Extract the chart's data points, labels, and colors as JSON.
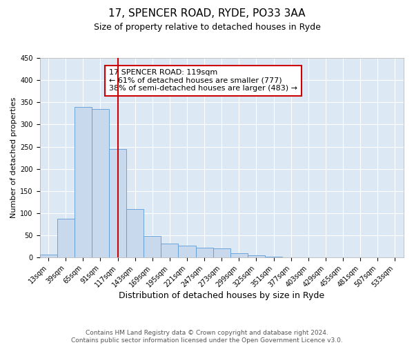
{
  "title": "17, SPENCER ROAD, RYDE, PO33 3AA",
  "subtitle": "Size of property relative to detached houses in Ryde",
  "xlabel": "Distribution of detached houses by size in Ryde",
  "ylabel": "Number of detached properties",
  "bar_labels": [
    "13sqm",
    "39sqm",
    "65sqm",
    "91sqm",
    "117sqm",
    "143sqm",
    "169sqm",
    "195sqm",
    "221sqm",
    "247sqm",
    "273sqm",
    "299sqm",
    "325sqm",
    "351sqm",
    "377sqm",
    "403sqm",
    "429sqm",
    "455sqm",
    "481sqm",
    "507sqm",
    "533sqm"
  ],
  "bar_values": [
    7,
    88,
    340,
    335,
    245,
    110,
    49,
    32,
    27,
    22,
    20,
    10,
    5,
    2,
    1,
    1,
    0,
    1,
    0,
    0,
    1
  ],
  "bar_color": "#c8d9ed",
  "bar_edge_color": "#5b9bd5",
  "background_color": "#dce9f5",
  "property_line_x": 4.0,
  "property_line_color": "#cc0000",
  "annotation_text": "17 SPENCER ROAD: 119sqm\n← 61% of detached houses are smaller (777)\n38% of semi-detached houses are larger (483) →",
  "annotation_box_color": "#cc0000",
  "ylim": [
    0,
    450
  ],
  "yticks": [
    0,
    50,
    100,
    150,
    200,
    250,
    300,
    350,
    400,
    450
  ],
  "footnote_line1": "Contains HM Land Registry data © Crown copyright and database right 2024.",
  "footnote_line2": "Contains public sector information licensed under the Open Government Licence v3.0.",
  "title_fontsize": 11,
  "subtitle_fontsize": 9,
  "xlabel_fontsize": 9,
  "ylabel_fontsize": 8,
  "tick_fontsize": 7,
  "annotation_fontsize": 8,
  "footnote_fontsize": 6.5
}
